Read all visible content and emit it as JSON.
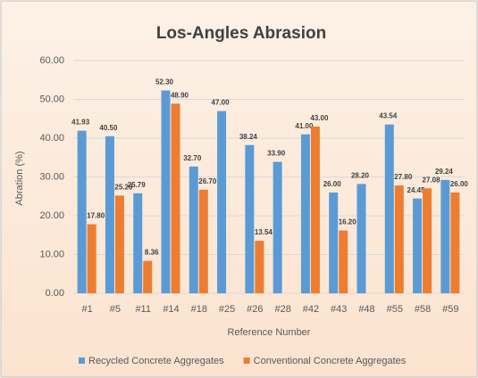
{
  "chart_data": {
    "type": "bar",
    "title": "Los-Angles Abrasion",
    "x_label": "Reference Number",
    "y_label": "Abration (%)",
    "categories": [
      "#1",
      "#5",
      "#11",
      "#14",
      "#18",
      "#25",
      "#26",
      "#28",
      "#42",
      "#43",
      "#48",
      "#55",
      "#58",
      "#59"
    ],
    "series": [
      {
        "name": "Recycled Concrete Aggregates",
        "color": "#5b9bd5",
        "values": [
          41.93,
          40.5,
          25.79,
          52.3,
          32.7,
          47.0,
          38.24,
          33.9,
          41.0,
          26.0,
          28.2,
          43.54,
          24.45,
          29.24
        ],
        "value_labels": [
          "41.93",
          "40.50",
          "25.79",
          "52.30",
          "32.70",
          "47.00",
          "38.24",
          "33.90",
          "41.00",
          "26.00",
          "28.20",
          "43.54",
          "24.45",
          "29.24"
        ]
      },
      {
        "name": "Conventional Concrete Aggregates",
        "color": "#ed7d31",
        "values": [
          17.8,
          25.2,
          8.36,
          48.9,
          26.7,
          null,
          13.54,
          null,
          43.0,
          16.2,
          null,
          27.8,
          27.08,
          26.0
        ],
        "value_labels": [
          "17.80",
          "25.20",
          "8.36",
          "48.90",
          "26.70",
          null,
          "13.54",
          null,
          "43.00",
          "16.20",
          null,
          "27.80",
          "27.08",
          "26.00"
        ]
      }
    ],
    "ylim": [
      0,
      60
    ],
    "yticks": [
      {
        "value": 0,
        "label": "0.00"
      },
      {
        "value": 10,
        "label": "10.00"
      },
      {
        "value": 20,
        "label": "20.00"
      },
      {
        "value": 30,
        "label": "30.00"
      },
      {
        "value": 40,
        "label": "40.00"
      },
      {
        "value": 50,
        "label": "50.00"
      },
      {
        "value": 60,
        "label": "60.00"
      }
    ],
    "grid": true,
    "legend": "bottom"
  }
}
